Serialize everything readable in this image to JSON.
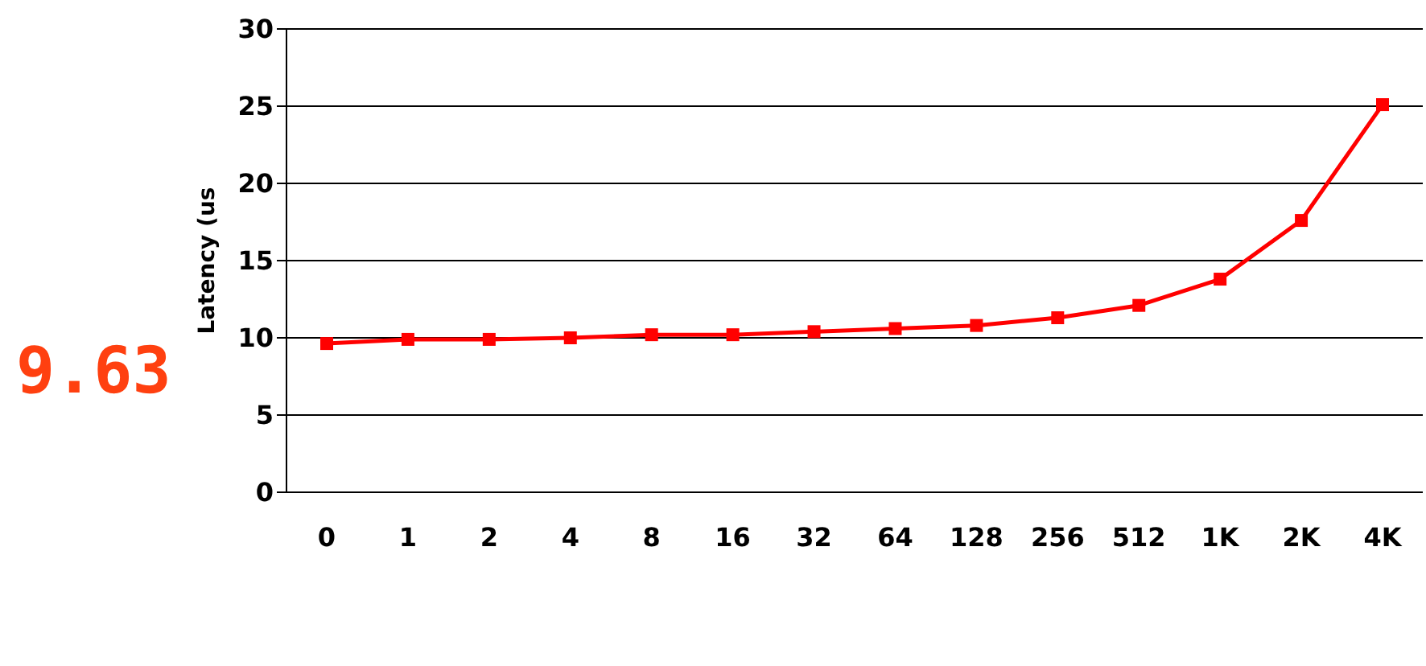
{
  "chart_data": {
    "type": "line",
    "ylabel": "Latency (us",
    "annotations": [
      "9.63"
    ],
    "categories": [
      "0",
      "1",
      "2",
      "4",
      "8",
      "16",
      "32",
      "64",
      "128",
      "256",
      "512",
      "1K",
      "2K",
      "4K"
    ],
    "series": [
      {
        "color": "#ff0000",
        "values": [
          9.63,
          9.9,
          9.9,
          10.0,
          10.2,
          10.2,
          10.4,
          10.6,
          10.8,
          11.3,
          12.1,
          13.8,
          17.6,
          25.1
        ]
      }
    ],
    "ylim": [
      0,
      30
    ],
    "yticks": [
      0,
      5,
      10,
      15,
      20,
      25,
      30
    ],
    "grid": "y",
    "marker": "square",
    "line_style": "solid"
  }
}
